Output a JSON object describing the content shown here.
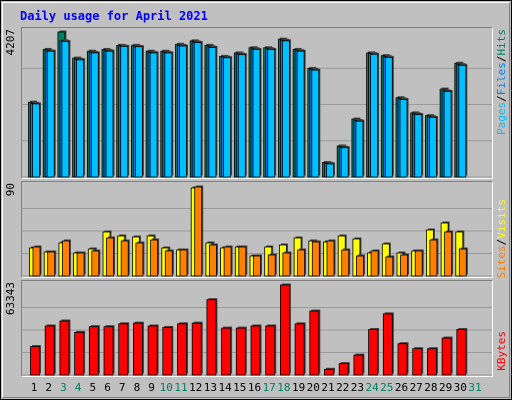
{
  "title": "Daily usage for April 2021",
  "colors": {
    "hits": "#00805c",
    "files": "#0080ff",
    "pages": "#00c0ff",
    "visits": "#ffff00",
    "sites": "#ff8000",
    "kbytes": "#ff0000",
    "weekend_label": "#00805c",
    "weekday_label": "#000000"
  },
  "chart_data": [
    {
      "type": "bar",
      "panel": "top",
      "y_max_label": "4207",
      "ylim": [
        0,
        4207
      ],
      "legend_parts": [
        "Pages",
        "/",
        "Files",
        "/",
        "Hits"
      ],
      "categories": [
        "1",
        "2",
        "3",
        "4",
        "5",
        "6",
        "7",
        "8",
        "9",
        "10",
        "11",
        "12",
        "13",
        "14",
        "15",
        "16",
        "17",
        "18",
        "19",
        "20",
        "21",
        "22",
        "23",
        "24",
        "25",
        "26",
        "27",
        "28",
        "29",
        "30",
        "31"
      ],
      "weekend_days": [
        "3",
        "4",
        "10",
        "11",
        "17",
        "18",
        "24",
        "25",
        "31"
      ],
      "series": [
        {
          "name": "Hits",
          "values": [
            2170,
            3700,
            4207,
            3450,
            3650,
            3700,
            3820,
            3820,
            3650,
            3650,
            3850,
            3950,
            3820,
            3500,
            3600,
            3750,
            3750,
            4000,
            3700,
            3150,
            420,
            900,
            1680,
            3600,
            3520,
            2300,
            1860,
            1780,
            2550,
            3300,
            null
          ]
        },
        {
          "name": "Files",
          "values": [
            2140,
            3660,
            3950,
            3420,
            3620,
            3670,
            3800,
            3790,
            3620,
            3620,
            3820,
            3920,
            3780,
            3480,
            3570,
            3720,
            3720,
            3970,
            3670,
            3120,
            400,
            870,
            1640,
            3580,
            3490,
            2270,
            1830,
            1750,
            2500,
            3260,
            null
          ]
        },
        {
          "name": "Pages",
          "values": [
            2120,
            3650,
            3930,
            3400,
            3600,
            3650,
            3790,
            3780,
            3600,
            3600,
            3800,
            3900,
            3760,
            3460,
            3550,
            3700,
            3700,
            3950,
            3650,
            3100,
            380,
            850,
            1620,
            3560,
            3470,
            2250,
            1810,
            1730,
            2480,
            3240,
            null
          ]
        }
      ]
    },
    {
      "type": "bar",
      "panel": "middle",
      "y_max_label": "90",
      "ylim": [
        0,
        90
      ],
      "legend_parts": [
        "Sites",
        "/",
        "Visits"
      ],
      "categories": [
        "1",
        "2",
        "3",
        "4",
        "5",
        "6",
        "7",
        "8",
        "9",
        "10",
        "11",
        "12",
        "13",
        "14",
        "15",
        "16",
        "17",
        "18",
        "19",
        "20",
        "21",
        "22",
        "23",
        "24",
        "25",
        "26",
        "27",
        "28",
        "29",
        "30",
        "31"
      ],
      "series": [
        {
          "name": "Visits",
          "values": [
            28,
            24,
            33,
            23,
            27,
            44,
            40,
            39,
            40,
            28,
            26,
            88,
            33,
            28,
            29,
            20,
            29,
            31,
            38,
            35,
            34,
            40,
            37,
            23,
            32,
            23,
            25,
            46,
            53,
            44,
            null
          ]
        },
        {
          "name": "Sites",
          "values": [
            29,
            24,
            35,
            23,
            25,
            38,
            35,
            33,
            36,
            25,
            26,
            89,
            31,
            29,
            29,
            20,
            21,
            23,
            26,
            34,
            35,
            26,
            20,
            25,
            19,
            21,
            25,
            36,
            44,
            27,
            null
          ]
        }
      ]
    },
    {
      "type": "bar",
      "panel": "bottom",
      "y_max_label": "63343",
      "ylim": [
        0,
        63343
      ],
      "legend_parts": [
        "KBytes"
      ],
      "categories": [
        "1",
        "2",
        "3",
        "4",
        "5",
        "6",
        "7",
        "8",
        "9",
        "10",
        "11",
        "12",
        "13",
        "14",
        "15",
        "16",
        "17",
        "18",
        "19",
        "20",
        "21",
        "22",
        "23",
        "24",
        "25",
        "26",
        "27",
        "28",
        "29",
        "30",
        "31"
      ],
      "series": [
        {
          "name": "KBytes",
          "values": [
            20000,
            34500,
            38000,
            30000,
            34000,
            34000,
            36000,
            36500,
            34500,
            33500,
            36000,
            36500,
            53000,
            33000,
            33000,
            34500,
            34500,
            63343,
            36000,
            45000,
            4000,
            8000,
            14000,
            32000,
            43000,
            22000,
            18500,
            18500,
            26000,
            32000,
            null
          ]
        }
      ]
    }
  ]
}
